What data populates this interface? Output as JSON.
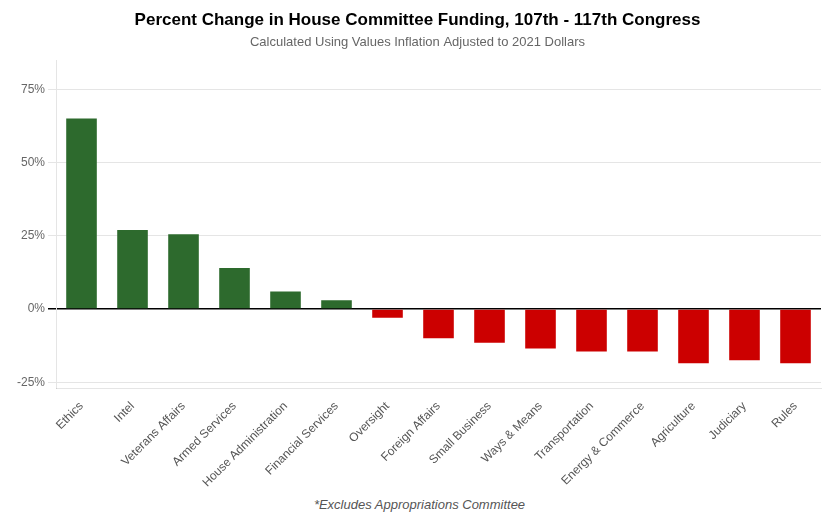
{
  "chart_data": {
    "type": "bar",
    "title": "Percent Change in House Committee Funding, 107th - 117th Congress",
    "subtitle": "Calculated Using Values Inflation Adjusted to 2021 Dollars",
    "footnote": "*Excludes Appropriations Committee",
    "categories": [
      "Ethics",
      "Intel",
      "Veterans Affairs",
      "Armed Services",
      "House Administration",
      "Financial Services",
      "Oversight",
      "Foreign Affairs",
      "Small Business",
      "Ways & Means",
      "Transportation",
      "Energy & Commerce",
      "Agriculture",
      "Judiciary",
      "Rules"
    ],
    "values": [
      65.0,
      27.0,
      25.5,
      14.0,
      6.0,
      3.0,
      -3.0,
      -10.0,
      -11.5,
      -13.5,
      -14.5,
      -14.5,
      -18.5,
      -17.5,
      -18.5
    ],
    "colors": [
      "#2d6a2d",
      "#2d6a2d",
      "#2d6a2d",
      "#2d6a2d",
      "#2d6a2d",
      "#2d6a2d",
      "#cc0000",
      "#cc0000",
      "#cc0000",
      "#cc0000",
      "#cc0000",
      "#cc0000",
      "#cc0000",
      "#cc0000",
      "#cc0000"
    ],
    "ylim": [
      -27,
      85
    ],
    "yticks": [
      {
        "value": -25,
        "label": "-25%"
      },
      {
        "value": 0,
        "label": "0%"
      },
      {
        "value": 25,
        "label": "25%"
      },
      {
        "value": 50,
        "label": "50%"
      },
      {
        "value": 75,
        "label": "75%"
      }
    ],
    "grid": true
  }
}
